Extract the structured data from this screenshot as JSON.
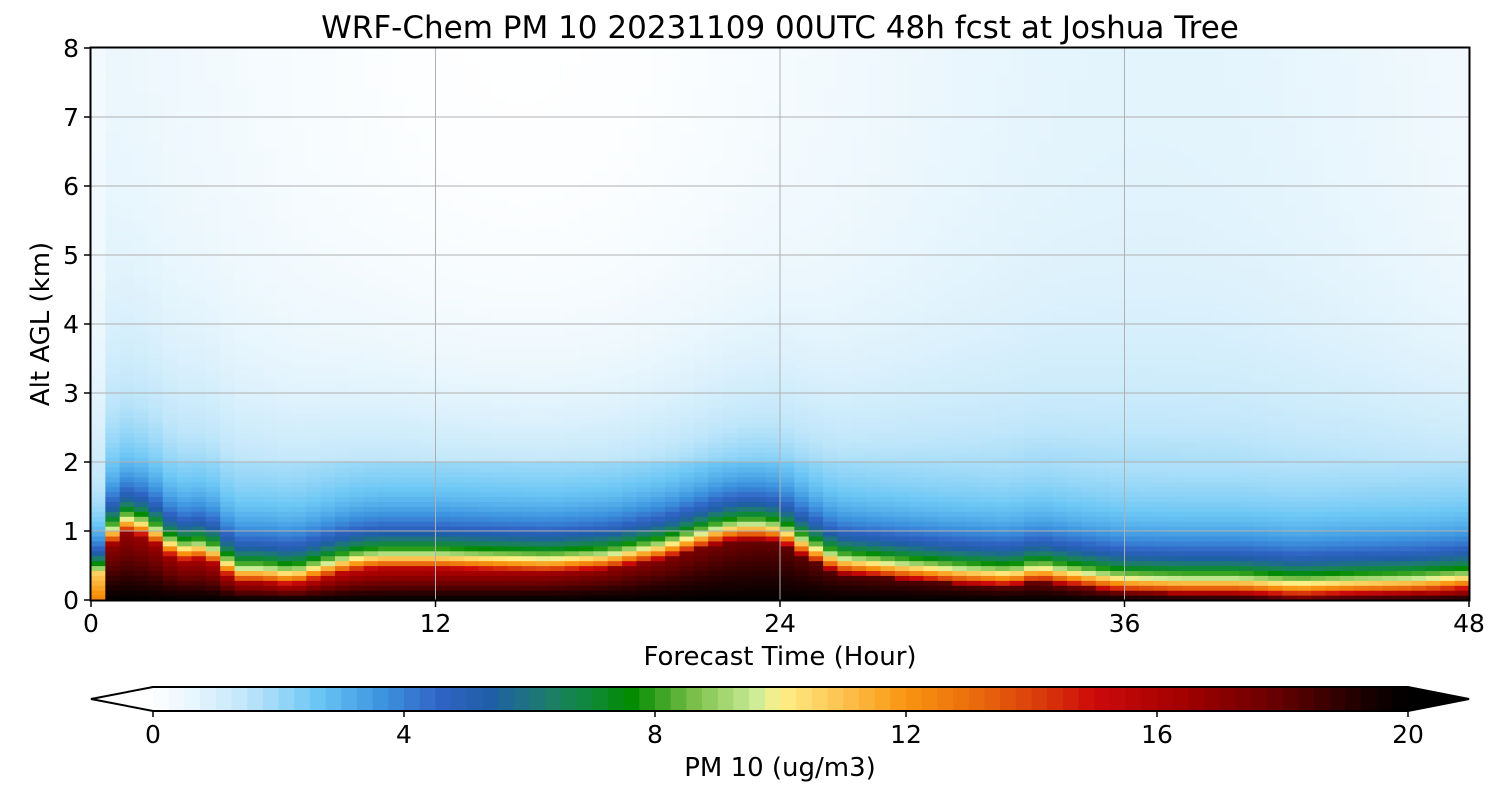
{
  "chart_data": {
    "type": "heatmap",
    "title": "WRF-Chem PM 10  20231109 00UTC 48h fcst at Joshua Tree",
    "xlabel": "Forecast Time (Hour)",
    "ylabel": "Alt AGL (km)",
    "xlim": [
      0,
      48
    ],
    "ylim": [
      0,
      8
    ],
    "x_ticks": [
      0,
      12,
      24,
      36,
      48
    ],
    "y_ticks": [
      0,
      1,
      2,
      3,
      4,
      5,
      6,
      7,
      8
    ],
    "grid": true,
    "colorbar": {
      "label": "PM 10  (ug/m3)",
      "range": [
        0,
        20
      ],
      "ticks": [
        0,
        4,
        8,
        12,
        16,
        20
      ],
      "extend": "both",
      "levels": 80
    },
    "profile_hours": [
      0,
      0.3,
      1,
      2,
      3,
      4,
      4.5,
      5,
      6,
      7,
      8,
      9,
      10,
      12,
      14,
      16,
      18,
      20,
      22,
      23,
      24,
      25,
      26,
      28,
      30,
      32,
      33,
      34,
      36,
      38,
      40,
      42,
      44,
      46,
      47,
      48
    ],
    "profile_altitudes_km": [
      0,
      0.15,
      0.3,
      0.5,
      0.7,
      0.9,
      1.05,
      1.2,
      1.5,
      1.8,
      2.0,
      2.5,
      3.0,
      3.5,
      4.0,
      5.0,
      6.0,
      7.0,
      8.0
    ],
    "boundary_layer_top_km": [
      0.0,
      0.5,
      1.0,
      0.9,
      0.55,
      0.6,
      0.45,
      0.25,
      0.25,
      0.2,
      0.3,
      0.4,
      0.45,
      0.45,
      0.42,
      0.4,
      0.45,
      0.6,
      0.85,
      0.9,
      0.85,
      0.6,
      0.4,
      0.32,
      0.25,
      0.2,
      0.28,
      0.22,
      0.12,
      0.1,
      0.1,
      0.05,
      0.08,
      0.1,
      0.12,
      0.15
    ]
  }
}
